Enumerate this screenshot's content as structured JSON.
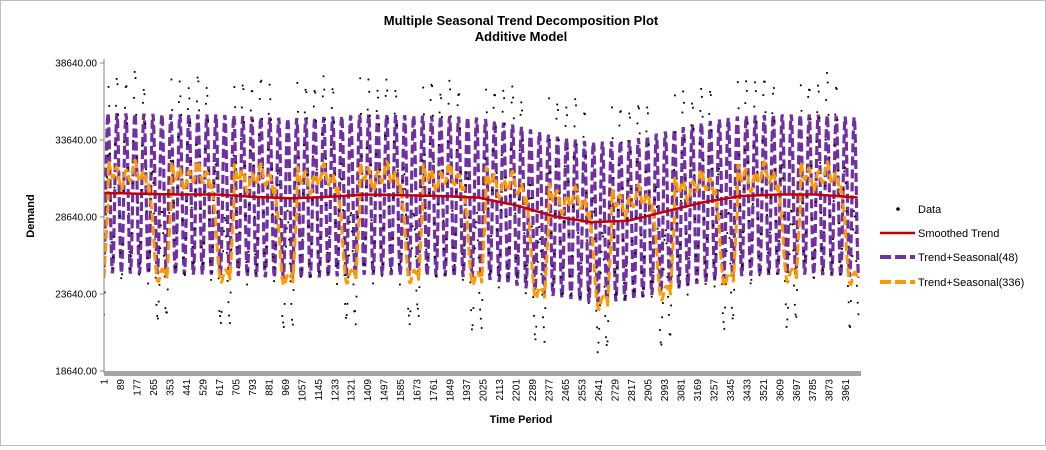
{
  "chart_data": {
    "type": "line",
    "title": "Multiple Seasonal Trend Decomposition Plot",
    "subtitle": "Additive Model",
    "xlabel": "Time Period",
    "ylabel": "Demand",
    "xlim": [
      1,
      4032
    ],
    "ylim": [
      18640,
      38640
    ],
    "y_ticks": [
      "18640.00",
      "23640.00",
      "28640.00",
      "33640.00",
      "38640.00"
    ],
    "y_tick_values": [
      18640,
      23640,
      28640,
      33640,
      38640
    ],
    "x_ticks": [
      "1",
      "89",
      "177",
      "265",
      "353",
      "441",
      "529",
      "617",
      "705",
      "793",
      "881",
      "969",
      "1057",
      "1145",
      "1233",
      "1321",
      "1409",
      "1497",
      "1585",
      "1673",
      "1761",
      "1849",
      "1937",
      "2025",
      "2113",
      "2201",
      "2289",
      "2377",
      "2465",
      "2553",
      "2641",
      "2729",
      "2817",
      "2905",
      "2993",
      "3081",
      "3169",
      "3257",
      "3345",
      "3433",
      "3521",
      "3609",
      "3697",
      "3785",
      "3873",
      "3961"
    ],
    "x_tick_values": [
      1,
      89,
      177,
      265,
      353,
      441,
      529,
      617,
      705,
      793,
      881,
      969,
      1057,
      1145,
      1233,
      1321,
      1409,
      1497,
      1585,
      1673,
      1761,
      1849,
      1937,
      2025,
      2113,
      2201,
      2289,
      2377,
      2465,
      2553,
      2641,
      2729,
      2817,
      2905,
      2993,
      3081,
      3169,
      3257,
      3345,
      3433,
      3521,
      3609,
      3697,
      3785,
      3873,
      3961
    ],
    "grid": false,
    "legend_position": "right",
    "series": [
      {
        "name": "Data",
        "style": "markers",
        "color": "#000000"
      },
      {
        "name": "Smoothed Trend",
        "style": "line",
        "color": "#c00000",
        "x": [
          1,
          200,
          400,
          600,
          800,
          1000,
          1200,
          1400,
          1600,
          1800,
          2000,
          2200,
          2400,
          2600,
          2800,
          3000,
          3200,
          3400,
          3600,
          3800,
          4032
        ],
        "values": [
          30200,
          30150,
          30100,
          30100,
          29950,
          29850,
          29950,
          30100,
          30050,
          30000,
          29900,
          29400,
          28700,
          28300,
          28400,
          29000,
          29600,
          30000,
          30100,
          30100,
          29900
        ]
      },
      {
        "name": "Trend+Seasonal(48)",
        "style": "dashed",
        "color": "#7030a0",
        "period": 48,
        "amplitude": 5200
      },
      {
        "name": "Trend+Seasonal(336)",
        "style": "dashed",
        "color": "#ff9900",
        "period": 336
      }
    ]
  }
}
